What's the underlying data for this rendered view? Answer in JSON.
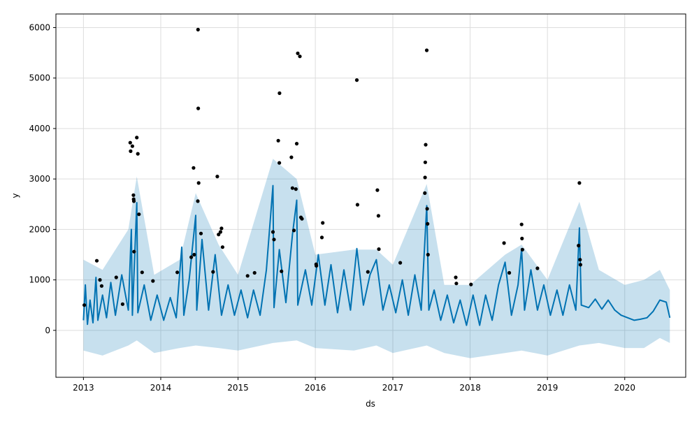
{
  "chart_data": {
    "type": "scatter",
    "title": "",
    "xlabel": "ds",
    "ylabel": "y",
    "x_range": [
      "2012-08-24",
      "2020-10-15"
    ],
    "ylim": [
      -930,
      6270
    ],
    "x_ticks": [
      "2013",
      "2014",
      "2015",
      "2016",
      "2017",
      "2018",
      "2019",
      "2020"
    ],
    "y_ticks": [
      0,
      1000,
      2000,
      3000,
      4000,
      5000,
      6000
    ],
    "grid": true,
    "legend": "none",
    "colors": {
      "observed": "#000000",
      "forecast": "#0072B2",
      "interval": "#0072B2",
      "grid": "#dddddd"
    },
    "series": [
      {
        "role": "observed",
        "note": "black dots, daily observations 2013-01 to 2019-06; listed points are the visible peaks",
        "points": [
          [
            "2013-01-05",
            500
          ],
          [
            "2013-03-05",
            1380
          ],
          [
            "2013-03-20",
            1000
          ],
          [
            "2013-03-28",
            880
          ],
          [
            "2013-06-05",
            1050
          ],
          [
            "2013-07-05",
            520
          ],
          [
            "2013-08-10",
            3720
          ],
          [
            "2013-08-12",
            3550
          ],
          [
            "2013-08-20",
            3650
          ],
          [
            "2013-08-25",
            2680
          ],
          [
            "2013-08-26",
            2600
          ],
          [
            "2013-08-27",
            2560
          ],
          [
            "2013-08-28",
            1560
          ],
          [
            "2013-09-10",
            3820
          ],
          [
            "2013-09-15",
            3500
          ],
          [
            "2013-09-20",
            2300
          ],
          [
            "2013-10-05",
            1150
          ],
          [
            "2013-11-25",
            980
          ],
          [
            "2014-03-20",
            1150
          ],
          [
            "2014-05-25",
            1450
          ],
          [
            "2014-06-05",
            3220
          ],
          [
            "2014-06-08",
            1500
          ],
          [
            "2014-06-25",
            2560
          ],
          [
            "2014-06-26",
            5960
          ],
          [
            "2014-06-27",
            4400
          ],
          [
            "2014-06-29",
            2920
          ],
          [
            "2014-07-10",
            1920
          ],
          [
            "2014-09-05",
            1160
          ],
          [
            "2014-09-25",
            3050
          ],
          [
            "2014-10-01",
            1900
          ],
          [
            "2014-10-10",
            1950
          ],
          [
            "2014-10-15",
            2020
          ],
          [
            "2014-10-20",
            1650
          ],
          [
            "2015-02-15",
            1080
          ],
          [
            "2015-03-20",
            1140
          ],
          [
            "2015-06-15",
            1950
          ],
          [
            "2015-06-20",
            1800
          ],
          [
            "2015-07-10",
            3760
          ],
          [
            "2015-07-15",
            3320
          ],
          [
            "2015-07-16",
            4700
          ],
          [
            "2015-07-25",
            1170
          ],
          [
            "2015-09-10",
            3430
          ],
          [
            "2015-09-15",
            2820
          ],
          [
            "2015-09-22",
            1980
          ],
          [
            "2015-10-01",
            2800
          ],
          [
            "2015-10-05",
            3700
          ],
          [
            "2015-10-10",
            5490
          ],
          [
            "2015-10-20",
            5430
          ],
          [
            "2015-10-25",
            2240
          ],
          [
            "2015-10-30",
            2210
          ],
          [
            "2016-01-05",
            1310
          ],
          [
            "2016-01-06",
            1280
          ],
          [
            "2016-02-05",
            2130
          ],
          [
            "2016-02-01",
            1840
          ],
          [
            "2016-07-15",
            4960
          ],
          [
            "2016-07-18",
            2490
          ],
          [
            "2016-09-05",
            1160
          ],
          [
            "2016-10-20",
            2780
          ],
          [
            "2016-10-25",
            2270
          ],
          [
            "2016-10-27",
            1610
          ],
          [
            "2017-02-05",
            1340
          ],
          [
            "2017-06-01",
            2720
          ],
          [
            "2017-06-02",
            3030
          ],
          [
            "2017-06-03",
            3330
          ],
          [
            "2017-06-05",
            3680
          ],
          [
            "2017-06-10",
            5550
          ],
          [
            "2017-06-12",
            2410
          ],
          [
            "2017-06-14",
            2110
          ],
          [
            "2017-06-16",
            1500
          ],
          [
            "2017-10-25",
            1050
          ],
          [
            "2017-10-28",
            930
          ],
          [
            "2018-01-05",
            910
          ],
          [
            "2018-06-10",
            1730
          ],
          [
            "2018-07-05",
            1140
          ],
          [
            "2018-09-01",
            2100
          ],
          [
            "2018-09-03",
            1820
          ],
          [
            "2018-09-05",
            1600
          ],
          [
            "2018-11-15",
            1230
          ],
          [
            "2019-06-01",
            2920
          ],
          [
            "2019-05-28",
            1680
          ],
          [
            "2019-06-04",
            1400
          ],
          [
            "2019-06-06",
            1300
          ]
        ]
      },
      {
        "role": "forecast",
        "note": "blue line yhat; values approximate the visible envelope",
        "points": [
          [
            "2013-01-01",
            200
          ],
          [
            "2013-01-10",
            900
          ],
          [
            "2013-01-20",
            120
          ],
          [
            "2013-02-01",
            600
          ],
          [
            "2013-02-15",
            150
          ],
          [
            "2013-03-01",
            1050
          ],
          [
            "2013-03-10",
            200
          ],
          [
            "2013-04-01",
            700
          ],
          [
            "2013-04-20",
            250
          ],
          [
            "2013-05-10",
            950
          ],
          [
            "2013-06-01",
            300
          ],
          [
            "2013-07-01",
            1100
          ],
          [
            "2013-08-01",
            400
          ],
          [
            "2013-08-15",
            2000
          ],
          [
            "2013-08-20",
            300
          ],
          [
            "2013-09-10",
            2530
          ],
          [
            "2013-09-15",
            350
          ],
          [
            "2013-10-15",
            900
          ],
          [
            "2013-11-15",
            200
          ],
          [
            "2013-12-15",
            700
          ],
          [
            "2014-01-15",
            200
          ],
          [
            "2014-02-15",
            650
          ],
          [
            "2014-03-15",
            250
          ],
          [
            "2014-04-10",
            1650
          ],
          [
            "2014-04-20",
            300
          ],
          [
            "2014-05-15",
            1000
          ],
          [
            "2014-06-15",
            2280
          ],
          [
            "2014-06-20",
            400
          ],
          [
            "2014-07-15",
            1800
          ],
          [
            "2014-08-15",
            400
          ],
          [
            "2014-09-15",
            1500
          ],
          [
            "2014-10-15",
            300
          ],
          [
            "2014-11-15",
            900
          ],
          [
            "2014-12-15",
            300
          ],
          [
            "2015-01-15",
            800
          ],
          [
            "2015-02-15",
            250
          ],
          [
            "2015-03-15",
            800
          ],
          [
            "2015-04-15",
            300
          ],
          [
            "2015-05-15",
            1200
          ],
          [
            "2015-06-15",
            2870
          ],
          [
            "2015-06-20",
            450
          ],
          [
            "2015-07-15",
            1600
          ],
          [
            "2015-08-15",
            550
          ],
          [
            "2015-09-15",
            1900
          ],
          [
            "2015-10-05",
            2580
          ],
          [
            "2015-10-10",
            500
          ],
          [
            "2015-11-15",
            1200
          ],
          [
            "2015-12-15",
            500
          ],
          [
            "2016-01-15",
            1500
          ],
          [
            "2016-02-15",
            500
          ],
          [
            "2016-03-15",
            1300
          ],
          [
            "2016-04-15",
            350
          ],
          [
            "2016-05-15",
            1200
          ],
          [
            "2016-06-15",
            400
          ],
          [
            "2016-07-15",
            1620
          ],
          [
            "2016-08-15",
            500
          ],
          [
            "2016-09-15",
            1100
          ],
          [
            "2016-10-15",
            1400
          ],
          [
            "2016-11-15",
            400
          ],
          [
            "2016-12-15",
            900
          ],
          [
            "2017-01-15",
            350
          ],
          [
            "2017-02-15",
            1000
          ],
          [
            "2017-03-15",
            300
          ],
          [
            "2017-04-15",
            1100
          ],
          [
            "2017-05-15",
            400
          ],
          [
            "2017-06-10",
            2470
          ],
          [
            "2017-06-20",
            400
          ],
          [
            "2017-07-15",
            800
          ],
          [
            "2017-08-15",
            200
          ],
          [
            "2017-09-15",
            700
          ],
          [
            "2017-10-15",
            150
          ],
          [
            "2017-11-15",
            600
          ],
          [
            "2017-12-15",
            100
          ],
          [
            "2018-01-15",
            700
          ],
          [
            "2018-02-15",
            100
          ],
          [
            "2018-03-15",
            700
          ],
          [
            "2018-04-15",
            200
          ],
          [
            "2018-05-15",
            900
          ],
          [
            "2018-06-15",
            1350
          ],
          [
            "2018-07-15",
            300
          ],
          [
            "2018-08-15",
            900
          ],
          [
            "2018-09-01",
            1620
          ],
          [
            "2018-09-15",
            400
          ],
          [
            "2018-10-15",
            1200
          ],
          [
            "2018-11-15",
            400
          ],
          [
            "2018-12-15",
            900
          ],
          [
            "2019-01-15",
            300
          ],
          [
            "2019-02-15",
            800
          ],
          [
            "2019-03-15",
            300
          ],
          [
            "2019-04-15",
            900
          ],
          [
            "2019-05-15",
            400
          ],
          [
            "2019-06-01",
            2030
          ],
          [
            "2019-06-10",
            500
          ],
          [
            "2019-07-15",
            450
          ],
          [
            "2019-08-15",
            620
          ],
          [
            "2019-09-15",
            420
          ],
          [
            "2019-10-15",
            600
          ],
          [
            "2019-11-15",
            400
          ],
          [
            "2019-12-15",
            300
          ],
          [
            "2020-01-15",
            250
          ],
          [
            "2020-02-15",
            200
          ],
          [
            "2020-03-15",
            220
          ],
          [
            "2020-04-15",
            250
          ],
          [
            "2020-05-15",
            380
          ],
          [
            "2020-06-15",
            600
          ],
          [
            "2020-07-15",
            560
          ],
          [
            "2020-08-01",
            250
          ]
        ]
      },
      {
        "role": "interval",
        "note": "light blue uncertainty band yhat_lower/yhat_upper",
        "points": [
          [
            "2013-01-01",
            -400,
            1400
          ],
          [
            "2013-04-01",
            -500,
            1200
          ],
          [
            "2013-08-01",
            -300,
            2000
          ],
          [
            "2013-09-10",
            -200,
            3050
          ],
          [
            "2013-12-01",
            -450,
            1100
          ],
          [
            "2014-04-01",
            -350,
            1400
          ],
          [
            "2014-06-15",
            -300,
            2720
          ],
          [
            "2014-10-01",
            -350,
            1700
          ],
          [
            "2015-01-01",
            -400,
            1100
          ],
          [
            "2015-06-15",
            -250,
            3400
          ],
          [
            "2015-10-05",
            -200,
            3000
          ],
          [
            "2016-01-01",
            -350,
            1500
          ],
          [
            "2016-07-01",
            -400,
            1600
          ],
          [
            "2016-10-15",
            -300,
            1600
          ],
          [
            "2017-01-01",
            -450,
            1300
          ],
          [
            "2017-06-10",
            -300,
            2900
          ],
          [
            "2017-09-01",
            -450,
            900
          ],
          [
            "2018-01-01",
            -550,
            900
          ],
          [
            "2018-06-15",
            -450,
            1500
          ],
          [
            "2018-09-01",
            -400,
            1700
          ],
          [
            "2019-01-01",
            -500,
            1000
          ],
          [
            "2019-06-01",
            -300,
            2550
          ],
          [
            "2019-09-01",
            -250,
            1200
          ],
          [
            "2020-01-01",
            -350,
            900
          ],
          [
            "2020-04-01",
            -350,
            1000
          ],
          [
            "2020-06-15",
            -150,
            1200
          ],
          [
            "2020-08-01",
            -250,
            800
          ]
        ]
      }
    ]
  }
}
